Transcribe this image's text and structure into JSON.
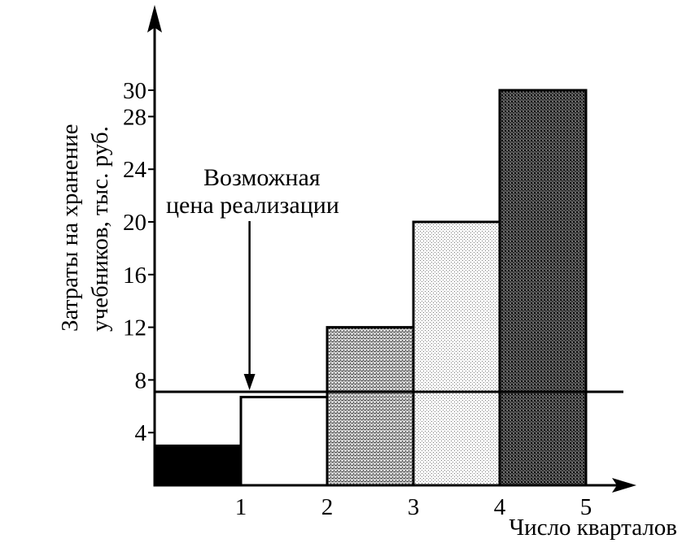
{
  "chart_data": {
    "type": "bar",
    "categories": [
      "0–1",
      "1–2",
      "2–3",
      "3–4",
      "4–5"
    ],
    "values": [
      3,
      6.7,
      12,
      20,
      30
    ],
    "xlabel": "Число кварталов",
    "ylabel_line1": "Затраты на хранение",
    "ylabel_line2": "учебников, тыс. руб.",
    "ylim": [
      0,
      31
    ],
    "xlim": [
      0,
      5.5
    ],
    "x_ticks": [
      "1",
      "2",
      "3",
      "4",
      "5"
    ],
    "y_ticks": [
      "4",
      "8",
      "12",
      "16",
      "20",
      "24",
      "28",
      "30"
    ],
    "reference_line": {
      "value": 7.1
    },
    "annotation_line1": "Возможная",
    "annotation_line2": "цена реализации",
    "annotation_x": 1.1,
    "grid": false,
    "legend": "none",
    "bar_fills": [
      "#000000",
      "#ffffff",
      "#b0b0b0",
      "#e0e0e0",
      "#555555"
    ]
  }
}
